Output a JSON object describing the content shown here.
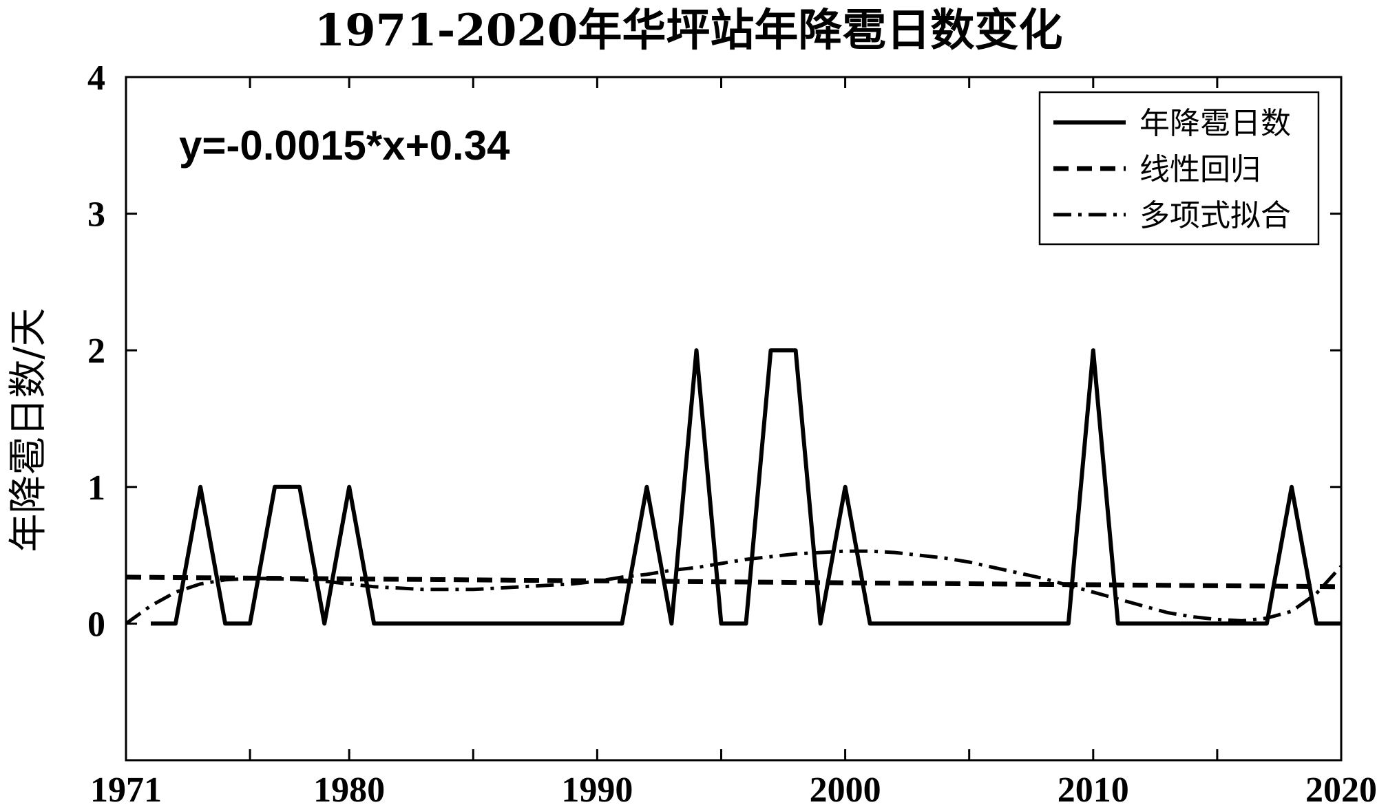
{
  "chart_data": {
    "type": "line",
    "title": "1971-2020年华坪站年降雹日数变化",
    "xlabel": "",
    "ylabel": "年降雹日数/天",
    "xlim": [
      1971,
      2020
    ],
    "ylim": [
      -1,
      4
    ],
    "x_ticks": [
      1971,
      1980,
      1990,
      2000,
      2010,
      2020
    ],
    "x_ticks_unlabeled": [
      1976,
      1985,
      1995,
      2005,
      2015
    ],
    "y_ticks": [
      0,
      1,
      2,
      3,
      4
    ],
    "annotation": "y=-0.0015*x+0.34",
    "grid": false,
    "legend_position": "top-right",
    "series": [
      {
        "name": "年降雹日数",
        "style": "solid",
        "x": [
          1972,
          1973,
          1974,
          1975,
          1976,
          1977,
          1978,
          1979,
          1980,
          1981,
          1982,
          1983,
          1984,
          1985,
          1986,
          1987,
          1988,
          1989,
          1990,
          1991,
          1992,
          1993,
          1994,
          1995,
          1996,
          1997,
          1998,
          1999,
          2000,
          2001,
          2002,
          2003,
          2004,
          2005,
          2006,
          2007,
          2008,
          2009,
          2010,
          2011,
          2012,
          2013,
          2014,
          2015,
          2016,
          2017,
          2018,
          2019,
          2020
        ],
        "values": [
          0,
          0,
          1,
          0,
          0,
          1,
          1,
          0,
          1,
          0,
          0,
          0,
          0,
          0,
          0,
          0,
          0,
          0,
          0,
          0,
          1,
          0,
          2,
          0,
          0,
          2,
          2,
          0,
          1,
          0,
          0,
          0,
          0,
          0,
          0,
          0,
          0,
          0,
          2,
          0,
          0,
          0,
          0,
          0,
          0,
          0,
          1,
          0,
          0
        ]
      },
      {
        "name": "线性回归",
        "style": "dashed",
        "x": [
          1971,
          2020
        ],
        "values": [
          0.34,
          0.27
        ]
      },
      {
        "name": "多项式拟合",
        "style": "dashdot",
        "x": [
          1971,
          1972,
          1973,
          1974,
          1975,
          1976,
          1977,
          1978,
          1979,
          1980,
          1981,
          1982,
          1983,
          1984,
          1985,
          1986,
          1987,
          1988,
          1989,
          1990,
          1991,
          1992,
          1993,
          1994,
          1995,
          1996,
          1997,
          1998,
          1999,
          2000,
          2001,
          2002,
          2003,
          2004,
          2005,
          2006,
          2007,
          2008,
          2009,
          2010,
          2011,
          2012,
          2013,
          2014,
          2015,
          2016,
          2017,
          2018,
          2019,
          2020
        ],
        "values": [
          0.0,
          0.13,
          0.23,
          0.29,
          0.32,
          0.33,
          0.33,
          0.32,
          0.31,
          0.29,
          0.27,
          0.26,
          0.25,
          0.25,
          0.25,
          0.26,
          0.27,
          0.28,
          0.29,
          0.31,
          0.34,
          0.36,
          0.39,
          0.41,
          0.44,
          0.47,
          0.49,
          0.51,
          0.52,
          0.53,
          0.53,
          0.52,
          0.5,
          0.48,
          0.45,
          0.41,
          0.37,
          0.33,
          0.28,
          0.23,
          0.18,
          0.13,
          0.08,
          0.05,
          0.03,
          0.02,
          0.04,
          0.09,
          0.22,
          0.42
        ]
      }
    ]
  }
}
